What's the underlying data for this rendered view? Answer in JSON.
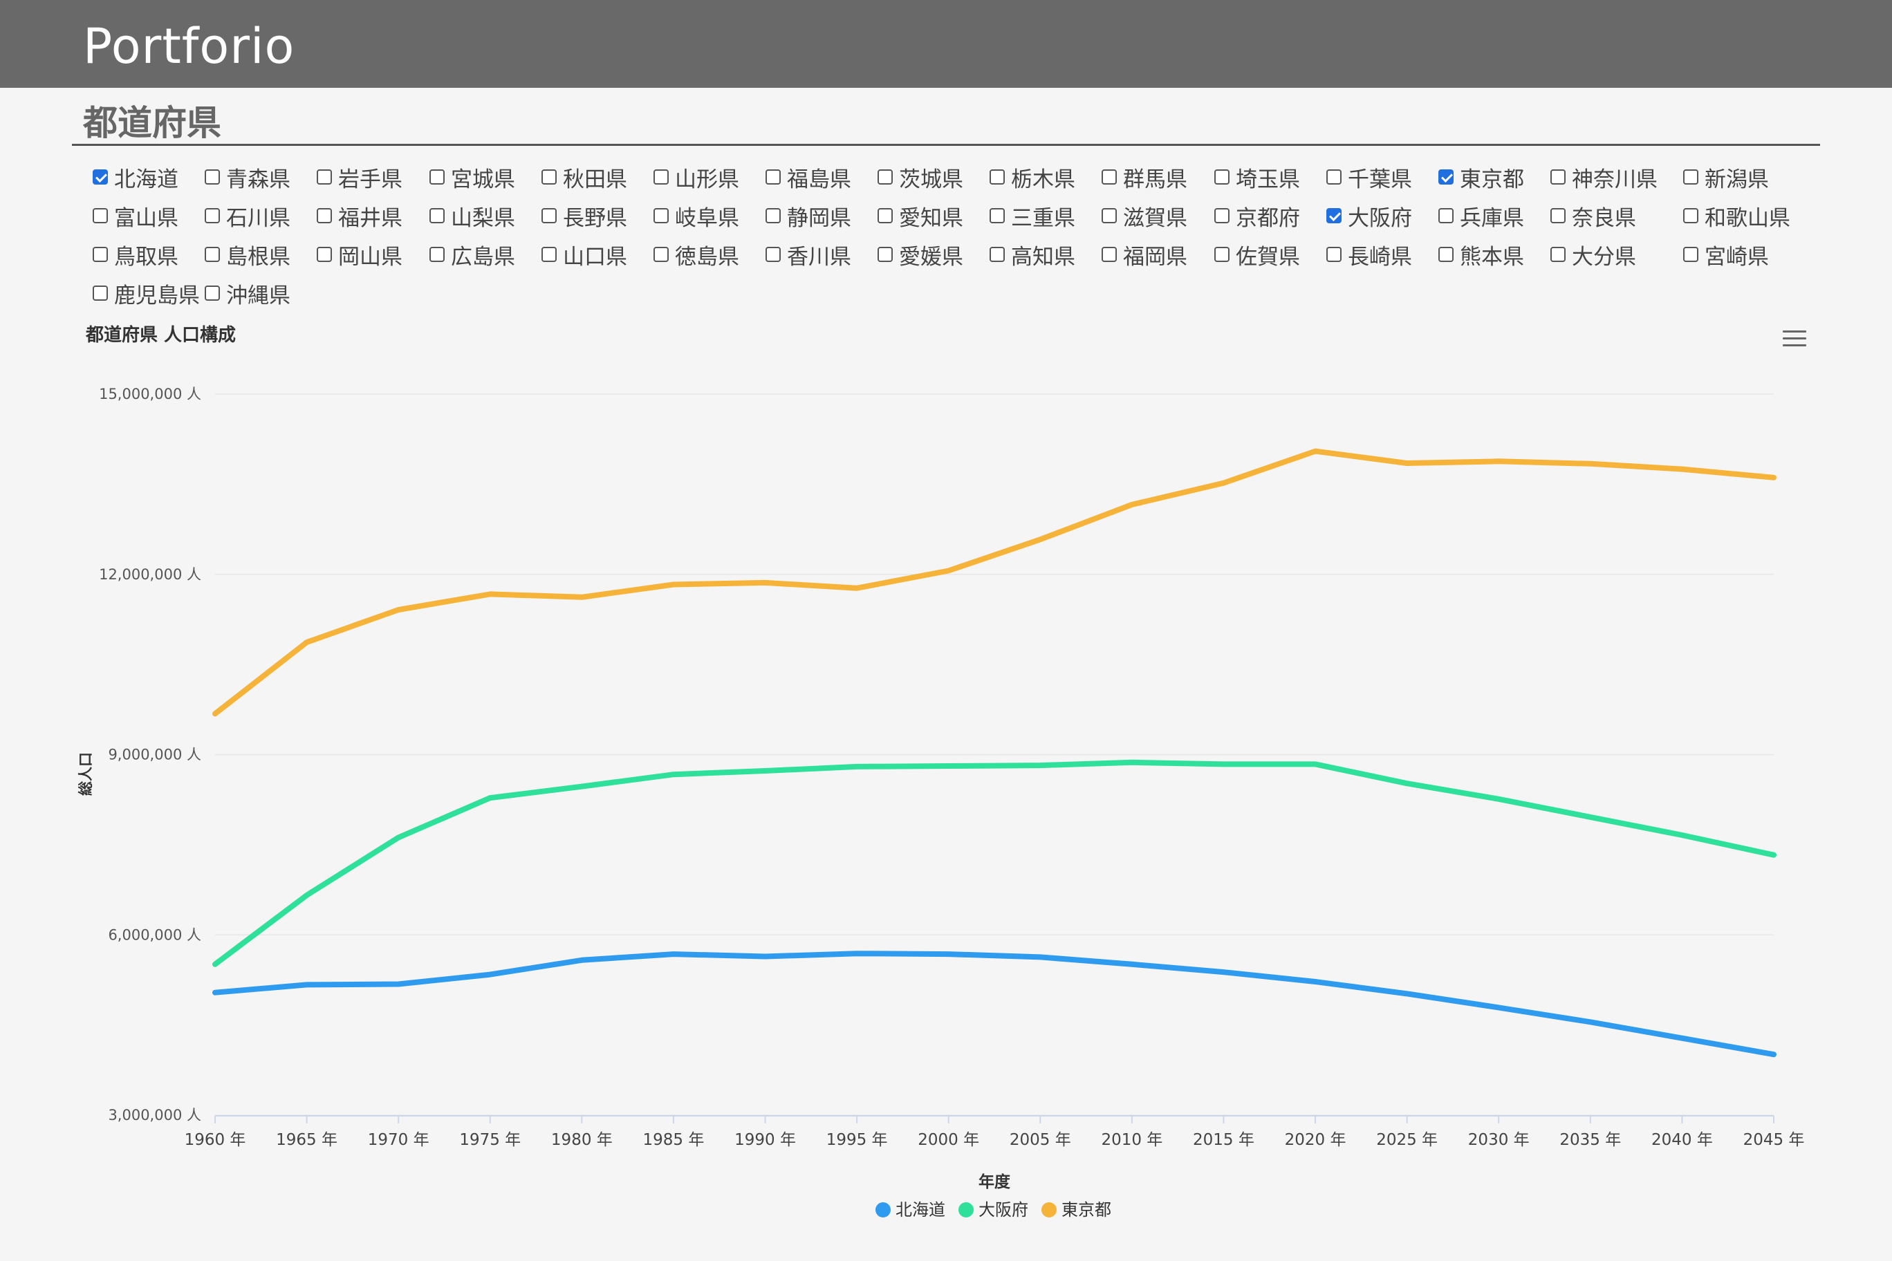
{
  "header": {
    "title": "Portforio"
  },
  "section": {
    "title": "都道府県"
  },
  "prefectures": [
    {
      "name": "北海道",
      "checked": true
    },
    {
      "name": "青森県",
      "checked": false
    },
    {
      "name": "岩手県",
      "checked": false
    },
    {
      "name": "宮城県",
      "checked": false
    },
    {
      "name": "秋田県",
      "checked": false
    },
    {
      "name": "山形県",
      "checked": false
    },
    {
      "name": "福島県",
      "checked": false
    },
    {
      "name": "茨城県",
      "checked": false
    },
    {
      "name": "栃木県",
      "checked": false
    },
    {
      "name": "群馬県",
      "checked": false
    },
    {
      "name": "埼玉県",
      "checked": false
    },
    {
      "name": "千葉県",
      "checked": false
    },
    {
      "name": "東京都",
      "checked": true
    },
    {
      "name": "神奈川県",
      "checked": false
    },
    {
      "name": "新潟県",
      "checked": false
    },
    {
      "name": "富山県",
      "checked": false
    },
    {
      "name": "石川県",
      "checked": false
    },
    {
      "name": "福井県",
      "checked": false
    },
    {
      "name": "山梨県",
      "checked": false
    },
    {
      "name": "長野県",
      "checked": false
    },
    {
      "name": "岐阜県",
      "checked": false
    },
    {
      "name": "静岡県",
      "checked": false
    },
    {
      "name": "愛知県",
      "checked": false
    },
    {
      "name": "三重県",
      "checked": false
    },
    {
      "name": "滋賀県",
      "checked": false
    },
    {
      "name": "京都府",
      "checked": false
    },
    {
      "name": "大阪府",
      "checked": true
    },
    {
      "name": "兵庫県",
      "checked": false
    },
    {
      "name": "奈良県",
      "checked": false
    },
    {
      "name": "和歌山県",
      "checked": false
    },
    {
      "name": "鳥取県",
      "checked": false
    },
    {
      "name": "島根県",
      "checked": false
    },
    {
      "name": "岡山県",
      "checked": false
    },
    {
      "name": "広島県",
      "checked": false
    },
    {
      "name": "山口県",
      "checked": false
    },
    {
      "name": "徳島県",
      "checked": false
    },
    {
      "name": "香川県",
      "checked": false
    },
    {
      "name": "愛媛県",
      "checked": false
    },
    {
      "name": "高知県",
      "checked": false
    },
    {
      "name": "福岡県",
      "checked": false
    },
    {
      "name": "佐賀県",
      "checked": false
    },
    {
      "name": "長崎県",
      "checked": false
    },
    {
      "name": "熊本県",
      "checked": false
    },
    {
      "name": "大分県",
      "checked": false
    },
    {
      "name": "宮崎県",
      "checked": false
    },
    {
      "name": "鹿児島県",
      "checked": false
    },
    {
      "name": "沖縄県",
      "checked": false
    }
  ],
  "chart_menu": {
    "icon": "hamburger-menu-icon"
  },
  "chart_data": {
    "type": "line",
    "title": "都道府県 人口構成",
    "xlabel": "年度",
    "ylabel": "総人口",
    "x_suffix": " 年",
    "y_suffix": " 人",
    "x": [
      1960,
      1965,
      1970,
      1975,
      1980,
      1985,
      1990,
      1995,
      2000,
      2005,
      2010,
      2015,
      2020,
      2025,
      2030,
      2035,
      2040,
      2045
    ],
    "ylim": [
      3000000,
      15000000
    ],
    "yticks": [
      3000000,
      6000000,
      9000000,
      12000000,
      15000000
    ],
    "ytick_labels": [
      "3,000,000 人",
      "6,000,000 人",
      "9,000,000 人",
      "12,000,000 人",
      "15,000,000 人"
    ],
    "xtick_labels": [
      "1960 年",
      "1965 年",
      "1970 年",
      "1975 年",
      "1980 年",
      "1985 年",
      "1990 年",
      "1995 年",
      "2000 年",
      "2005 年",
      "2010 年",
      "2015 年",
      "2020 年",
      "2025 年",
      "2030 年",
      "2035 年",
      "2040 年",
      "2045 年"
    ],
    "grid": true,
    "legend_position": "bottom-center",
    "series": [
      {
        "name": "北海道",
        "color": "#2e9bee",
        "values": [
          5040000,
          5170000,
          5180000,
          5340000,
          5580000,
          5680000,
          5640000,
          5690000,
          5680000,
          5630000,
          5510000,
          5380000,
          5220000,
          5020000,
          4790000,
          4550000,
          4280000,
          4010000
        ]
      },
      {
        "name": "大阪府",
        "color": "#2ee09a",
        "values": [
          5510000,
          6660000,
          7620000,
          8280000,
          8470000,
          8670000,
          8730000,
          8800000,
          8810000,
          8820000,
          8870000,
          8840000,
          8840000,
          8520000,
          8260000,
          7960000,
          7660000,
          7330000
        ]
      },
      {
        "name": "東京都",
        "color": "#f6b33a",
        "values": [
          9680000,
          10870000,
          11410000,
          11670000,
          11620000,
          11830000,
          11860000,
          11770000,
          12060000,
          12580000,
          13160000,
          13520000,
          14050000,
          13850000,
          13880000,
          13840000,
          13750000,
          13610000
        ]
      }
    ]
  }
}
